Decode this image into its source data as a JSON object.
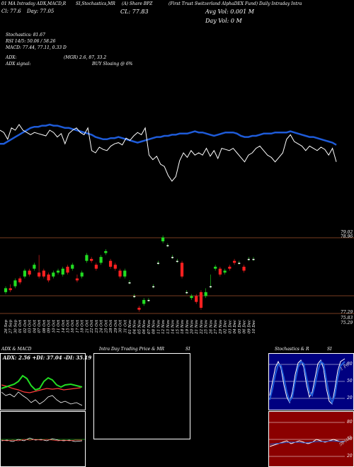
{
  "header": {
    "l1": "01 MA Intraday ADX,MACD,R",
    "l1b": "SI,Stochastics,MR",
    "l1c": "(A) Share BPZ",
    "l1d": "(First Trust Switzerland AlphaDEX Fund) Daily Intraday Intra",
    "l2a": "Cl: 77.6",
    "l2b": "Day: 77.05",
    "l2c": "CL: 77.83",
    "vol1": "Avg Vol: 0.001 M",
    "vol2": "Day Vol: 0   M",
    "stoch": "Stochastics: 81.67",
    "rsi": "RSI 14/5: 50.06  /  58.26",
    "macd": "MACD: 77.44,  77.11,  0.33 D",
    "adx": "ADX:",
    "adx2": "(MGR) 2.6,  87,  33.2",
    "adxsig": "ADX  signal:",
    "buy": "BUY Sloaing @ 6%"
  },
  "price_axis": {
    "top_a": "79.02",
    "top_b": "78.96",
    "bot_a": "77.29",
    "bot_b": "75.83",
    "bot_c": "75.29"
  },
  "panels": {
    "adx_title": "ADX  & MACD",
    "adx_values": "ADX: 2.56  +DI: 37.04  -DI: 35.19",
    "intra_title": "Intra  Day Trading Price  & MR",
    "intra_si": "SI",
    "stoch_title": "Stochastics & R",
    "stoch_si": "SI",
    "stoch_ticks": [
      "80",
      "50",
      "20"
    ],
    "stoch_lbl": "1 PC",
    "rsi_ticks": [
      "80",
      "50",
      "20"
    ],
    "rsi_lbl": "50 RSI"
  },
  "chart_data": {
    "type": "candlestick",
    "dates": [
      "26 Sep",
      "27 Sep",
      "30 Sep",
      "01 Oct",
      "02 Oct",
      "03 Oct",
      "04 Oct",
      "07 Oct",
      "08 Oct",
      "09 Oct",
      "10 Oct",
      "11 Oct",
      "14 Oct",
      "15 Oct",
      "16 Oct",
      "17 Oct",
      "18 Oct",
      "21 Oct",
      "22 Oct",
      "23 Oct",
      "24 Oct",
      "25 Oct",
      "28 Oct",
      "29 Oct",
      "30 Oct",
      "31 Oct",
      "01 Nov",
      "04 Nov",
      "05 Nov",
      "06 Nov",
      "07 Nov",
      "08 Nov",
      "11 Nov",
      "12 Nov",
      "13 Nov",
      "14 Nov",
      "15 Nov",
      "18 Nov",
      "19 Nov",
      "20 Nov",
      "21 Nov",
      "22 Nov",
      "25 Nov",
      "26 Nov",
      "27 Nov",
      "29 Nov",
      "02 Dec",
      "03 Dec",
      "04 Dec",
      "05 Dec",
      "06 Dec",
      "09 Dec",
      "10 Dec"
    ],
    "candles": [
      {
        "o": 77.8,
        "c": 78.0,
        "h": 78.1,
        "l": 77.7
      },
      {
        "o": 78.0,
        "c": 77.9,
        "h": 78.2,
        "l": 77.8
      },
      {
        "o": 78.1,
        "c": 78.4,
        "h": 78.5,
        "l": 78.0
      },
      {
        "o": 78.5,
        "c": 78.3,
        "h": 78.6,
        "l": 78.2
      },
      {
        "o": 78.6,
        "c": 78.9,
        "h": 79.0,
        "l": 78.5
      },
      {
        "o": 78.9,
        "c": 78.7,
        "h": 79.0,
        "l": 78.6
      },
      {
        "o": 79.0,
        "c": 79.2,
        "h": 79.3,
        "l": 78.9
      },
      {
        "o": 78.8,
        "c": 78.6,
        "h": 79.7,
        "l": 78.5
      },
      {
        "o": 78.9,
        "c": 78.6,
        "h": 79.0,
        "l": 78.5
      },
      {
        "o": 78.7,
        "c": 78.4,
        "h": 78.8,
        "l": 78.3
      },
      {
        "o": 78.6,
        "c": 78.8,
        "h": 78.9,
        "l": 78.5
      },
      {
        "o": 78.8,
        "c": 78.9,
        "h": 79.0,
        "l": 78.7
      },
      {
        "o": 78.7,
        "c": 79.0,
        "h": 79.1,
        "l": 78.6
      },
      {
        "o": 79.1,
        "c": 78.8,
        "h": 79.2,
        "l": 78.7
      },
      {
        "o": 79.0,
        "c": 79.2,
        "h": 79.3,
        "l": 78.9
      },
      {
        "o": 78.5,
        "c": 78.4,
        "h": 78.7,
        "l": 78.3
      },
      {
        "o": 78.6,
        "c": 78.8,
        "h": 78.9,
        "l": 78.5
      },
      {
        "o": 79.4,
        "c": 79.7,
        "h": 79.8,
        "l": 79.3
      },
      {
        "o": 79.5,
        "c": 79.4,
        "h": 79.6,
        "l": 79.3
      },
      {
        "o": 79.2,
        "c": 79.0,
        "h": 79.3,
        "l": 78.9
      },
      {
        "o": 79.3,
        "c": 79.6,
        "h": 79.7,
        "l": 79.2
      },
      {
        "o": 79.8,
        "c": 79.9,
        "h": 80.0,
        "l": 79.7
      },
      {
        "o": 79.4,
        "c": 79.1,
        "h": 79.5,
        "l": 79.0
      },
      {
        "o": 79.2,
        "c": 79.0,
        "h": 79.3,
        "l": 78.9
      },
      {
        "o": 78.9,
        "c": 78.6,
        "h": 79.0,
        "l": 78.5
      },
      {
        "o": 78.6,
        "c": 78.9,
        "h": 79.0,
        "l": 78.5
      },
      {
        "o": 78.3,
        "c": 78.3,
        "h": 78.4,
        "l": 78.2
      },
      {
        "o": 77.6,
        "c": 77.6,
        "h": 77.7,
        "l": 77.5
      },
      {
        "o": 77.0,
        "c": 76.9,
        "h": 77.1,
        "l": 76.8
      },
      {
        "o": 77.2,
        "c": 77.4,
        "h": 77.5,
        "l": 77.1
      },
      {
        "o": 77.4,
        "c": 77.4,
        "h": 77.5,
        "l": 77.3
      },
      {
        "o": 78.1,
        "c": 78.1,
        "h": 78.2,
        "l": 78.0
      },
      {
        "o": 79.3,
        "c": 79.3,
        "h": 79.4,
        "l": 79.2
      },
      {
        "o": 80.4,
        "c": 80.6,
        "h": 80.7,
        "l": 80.3
      },
      {
        "o": 80.2,
        "c": 80.2,
        "h": 80.3,
        "l": 80.1
      },
      {
        "o": 79.6,
        "c": 79.6,
        "h": 79.7,
        "l": 79.5
      },
      {
        "o": 79.4,
        "c": 79.4,
        "h": 79.5,
        "l": 79.3
      },
      {
        "o": 79.3,
        "c": 78.6,
        "h": 79.4,
        "l": 78.5
      },
      {
        "o": 77.8,
        "c": 77.8,
        "h": 77.9,
        "l": 77.7
      },
      {
        "o": 77.5,
        "c": 77.6,
        "h": 77.7,
        "l": 77.4
      },
      {
        "o": 77.6,
        "c": 77.3,
        "h": 77.7,
        "l": 77.2
      },
      {
        "o": 77.8,
        "c": 77.0,
        "h": 77.9,
        "l": 76.9
      },
      {
        "o": 77.6,
        "c": 77.8,
        "h": 78.0,
        "l": 77.5
      },
      {
        "o": 78.1,
        "c": 78.1,
        "h": 78.7,
        "l": 78.0
      },
      {
        "o": 79.0,
        "c": 79.1,
        "h": 79.2,
        "l": 78.9
      },
      {
        "o": 79.0,
        "c": 78.7,
        "h": 79.1,
        "l": 78.6
      },
      {
        "o": 78.8,
        "c": 78.9,
        "h": 79.0,
        "l": 78.7
      },
      {
        "o": 79.1,
        "c": 79.0,
        "h": 79.2,
        "l": 78.9
      },
      {
        "o": 79.4,
        "c": 79.3,
        "h": 79.5,
        "l": 79.2
      },
      {
        "o": 79.3,
        "c": 79.3,
        "h": 79.4,
        "l": 79.2
      },
      {
        "o": 79.1,
        "c": 78.9,
        "h": 79.2,
        "l": 78.8
      },
      {
        "o": 79.5,
        "c": 79.5,
        "h": 79.6,
        "l": 79.4
      },
      {
        "o": 79.5,
        "c": 79.5,
        "h": 79.6,
        "l": 79.4
      }
    ],
    "white_line": [
      60,
      58,
      52,
      62,
      60,
      65,
      60,
      58,
      56,
      58,
      57,
      56,
      55,
      60,
      58,
      54,
      57,
      48,
      57,
      60,
      62,
      58,
      56,
      62,
      42,
      40,
      45,
      43,
      42,
      46,
      48,
      49,
      47,
      53,
      51,
      55,
      58,
      56,
      62,
      38,
      34,
      37,
      30,
      28,
      20,
      15,
      19,
      33,
      40,
      36,
      42,
      38,
      40,
      38,
      44,
      37,
      42,
      35,
      44,
      43,
      42,
      44,
      40,
      36,
      32,
      38,
      40,
      44,
      46,
      42,
      38,
      36,
      32,
      36,
      40,
      52,
      56,
      50,
      48,
      46,
      42,
      46,
      44,
      42,
      45,
      43,
      38,
      44,
      32
    ],
    "blue_line": [
      48,
      48,
      50,
      52,
      54,
      56,
      58,
      60,
      62,
      63,
      63,
      64,
      64,
      65,
      64,
      64,
      63,
      62,
      62,
      61,
      60,
      59,
      58,
      57,
      56,
      54,
      53,
      52,
      52,
      53,
      53,
      54,
      53,
      52,
      51,
      50,
      49,
      50,
      51,
      52,
      53,
      54,
      54,
      55,
      55,
      56,
      56,
      57,
      57,
      57,
      58,
      59,
      58,
      58,
      57,
      56,
      55,
      56,
      57,
      58,
      58,
      58,
      57,
      55,
      54,
      54,
      55,
      55,
      56,
      57,
      57,
      57,
      58,
      58,
      58,
      58,
      59,
      58,
      57,
      56,
      55,
      54,
      54,
      53,
      52,
      51,
      50,
      49,
      47
    ]
  }
}
